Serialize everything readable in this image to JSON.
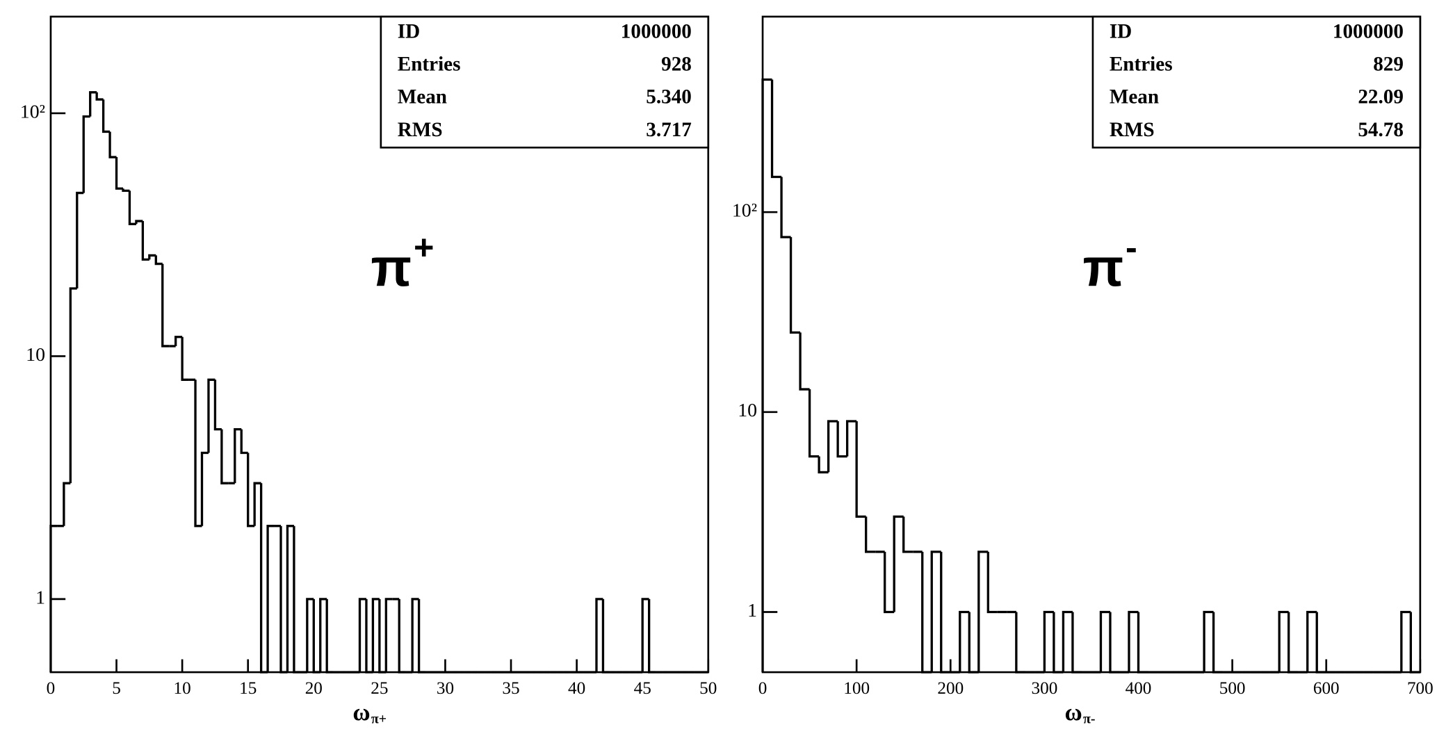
{
  "chart_data": [
    {
      "type": "histogram",
      "annotation": {
        "symbol": "π",
        "charge": "+"
      },
      "xlabel": {
        "main": "ω",
        "sub": "π+"
      },
      "stats": [
        [
          "ID",
          "1000000"
        ],
        [
          "Entries",
          "928"
        ],
        [
          "Mean",
          "5.340"
        ],
        [
          "RMS",
          "3.717"
        ]
      ],
      "bins": [
        0,
        0.5,
        1,
        1.5,
        2,
        2.5,
        3,
        3.5,
        4,
        4.5,
        5,
        5.5,
        6,
        6.5,
        7,
        7.5,
        8,
        8.5,
        9,
        9.5,
        10,
        10.5,
        11,
        11.5,
        12,
        12.5,
        13,
        13.5,
        14,
        14.5,
        15,
        15.5,
        16,
        16.5,
        17,
        17.5,
        18,
        18.5,
        19,
        19.5,
        20,
        20.5,
        21,
        21.5,
        22,
        22.5,
        23,
        23.5,
        24,
        24.5,
        25,
        25.5,
        26,
        26.5,
        27,
        27.5,
        28,
        28.5,
        29,
        29.5,
        30,
        30.5,
        31,
        31.5,
        32,
        32.5,
        33,
        33.5,
        34,
        34.5,
        35,
        35.5,
        36,
        36.5,
        37,
        37.5,
        38,
        38.5,
        39,
        39.5,
        40,
        40.5,
        41,
        41.5,
        42,
        42.5,
        43,
        43.5,
        44,
        44.5,
        45,
        45.5,
        46,
        46.5,
        47,
        47.5,
        48,
        48.5,
        49,
        49.5,
        50
      ],
      "values": [
        2,
        2,
        3,
        19,
        47,
        97,
        122,
        114,
        84,
        66,
        49,
        48,
        35,
        36,
        25,
        26,
        24,
        11,
        11,
        12,
        8,
        8,
        2,
        4,
        8,
        5,
        3,
        3,
        5,
        4,
        2,
        3,
        0,
        2,
        2,
        0,
        2,
        0,
        0,
        1,
        0,
        1,
        0,
        0,
        0,
        0,
        0,
        1,
        0,
        1,
        0,
        1,
        1,
        0,
        0,
        1,
        0,
        0,
        0,
        0,
        0,
        0,
        0,
        0,
        0,
        0,
        0,
        0,
        0,
        0,
        0,
        0,
        0,
        0,
        0,
        0,
        0,
        0,
        0,
        0,
        0,
        0,
        0,
        1,
        0,
        0,
        0,
        0,
        0,
        0,
        1,
        0,
        0,
        0,
        0,
        0,
        0,
        0,
        0,
        0
      ],
      "color": "#000000",
      "xlim": [
        0,
        50
      ],
      "xticks": [
        0,
        5,
        10,
        15,
        20,
        25,
        30,
        35,
        40,
        45,
        50
      ],
      "ylim": [
        0.5,
        250
      ],
      "ylog": true,
      "yticks": [
        1,
        10,
        {
          "value": 100,
          "label": "10²"
        }
      ]
    },
    {
      "type": "histogram",
      "annotation": {
        "symbol": "π",
        "charge": "-"
      },
      "xlabel": {
        "main": "ω",
        "sub": "π-"
      },
      "stats": [
        [
          "ID",
          "1000000"
        ],
        [
          "Entries",
          "829"
        ],
        [
          "Mean",
          "22.09"
        ],
        [
          "RMS",
          "54.78"
        ]
      ],
      "bins": [
        0,
        10,
        20,
        30,
        40,
        50,
        60,
        70,
        80,
        90,
        100,
        110,
        120,
        130,
        140,
        150,
        160,
        170,
        180,
        190,
        200,
        210,
        220,
        230,
        240,
        250,
        260,
        270,
        280,
        290,
        300,
        310,
        320,
        330,
        340,
        350,
        360,
        370,
        380,
        390,
        400,
        410,
        420,
        430,
        440,
        450,
        460,
        470,
        480,
        490,
        500,
        510,
        520,
        530,
        540,
        550,
        560,
        570,
        580,
        590,
        600,
        610,
        620,
        630,
        640,
        650,
        660,
        670,
        680,
        690,
        700
      ],
      "values": [
        460,
        150,
        75,
        25,
        13,
        6,
        5,
        9,
        6,
        9,
        3,
        2,
        2,
        1,
        3,
        2,
        2,
        0,
        2,
        0,
        0,
        1,
        0,
        2,
        1,
        1,
        1,
        0,
        0,
        0,
        1,
        0,
        1,
        0,
        0,
        0,
        1,
        0,
        0,
        1,
        0,
        0,
        0,
        0,
        0,
        0,
        0,
        1,
        0,
        0,
        0,
        0,
        0,
        0,
        0,
        1,
        0,
        0,
        1,
        0,
        0,
        0,
        0,
        0,
        0,
        0,
        0,
        0,
        1,
        0
      ],
      "color": "#000000",
      "xlim": [
        0,
        700
      ],
      "xticks": [
        0,
        100,
        200,
        300,
        400,
        500,
        600,
        700
      ],
      "ylim": [
        0.5,
        950
      ],
      "ylog": true,
      "yticks": [
        1,
        10,
        {
          "value": 100,
          "label": "10²"
        }
      ]
    }
  ]
}
